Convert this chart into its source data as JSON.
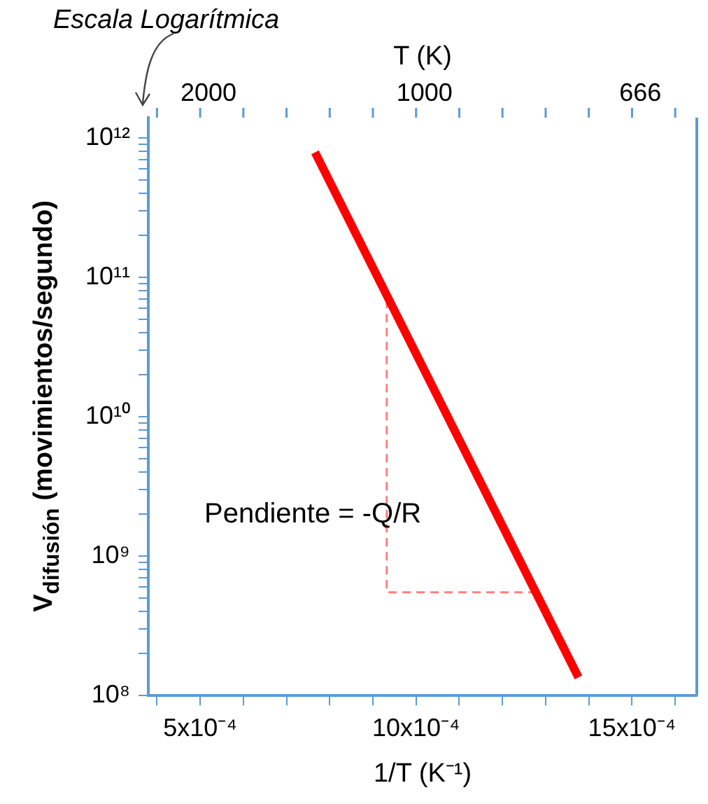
{
  "chart_data": {
    "type": "line",
    "xlabel": "1/T (K⁻¹)",
    "ylabel": "V$_{difusión}$ (movimientos/segundo)",
    "x2label": "T (K)",
    "annotations": [
      "Escala Logarítmica",
      "Pendiente = -Q/R",
      "2000",
      "1000",
      "666"
    ],
    "log": "y",
    "grid": false,
    "legend": false,
    "marker": "none",
    "xlim": [
      0.00038,
      0.00165
    ],
    "xticks": [
      {
        "value": 0.0004,
        "label": null
      },
      {
        "value": 0.0005,
        "label": "5x10⁻⁴"
      },
      {
        "value": 0.0006,
        "label": null
      },
      {
        "value": 0.0007,
        "label": null
      },
      {
        "value": 0.0008,
        "label": null
      },
      {
        "value": 0.0009,
        "label": null
      },
      {
        "value": 0.001,
        "label": "10x10⁻⁴"
      },
      {
        "value": 0.0011,
        "label": null
      },
      {
        "value": 0.0012,
        "label": null
      },
      {
        "value": 0.0013,
        "label": null
      },
      {
        "value": 0.0014,
        "label": null
      },
      {
        "value": 0.0015,
        "label": "15x10⁻⁴"
      },
      {
        "value": 0.0016,
        "label": null
      }
    ],
    "ylim": [
      100000000,
      1400000000000
    ],
    "yticks": [
      {
        "value": 100000000,
        "label": "10⁸"
      },
      {
        "value": 200000000,
        "label": null
      },
      {
        "value": 300000000,
        "label": null
      },
      {
        "value": 400000000,
        "label": null
      },
      {
        "value": 500000000,
        "label": null
      },
      {
        "value": 600000000,
        "label": null
      },
      {
        "value": 700000000,
        "label": null
      },
      {
        "value": 800000000,
        "label": null
      },
      {
        "value": 900000000,
        "label": null
      },
      {
        "value": 1000000000,
        "label": "10⁹"
      },
      {
        "value": 2000000000,
        "label": null
      },
      {
        "value": 3000000000,
        "label": null
      },
      {
        "value": 4000000000,
        "label": null
      },
      {
        "value": 5000000000,
        "label": null
      },
      {
        "value": 6000000000,
        "label": null
      },
      {
        "value": 7000000000,
        "label": null
      },
      {
        "value": 8000000000,
        "label": null
      },
      {
        "value": 9000000000,
        "label": null
      },
      {
        "value": 10000000000,
        "label": "10¹⁰"
      },
      {
        "value": 20000000000,
        "label": null
      },
      {
        "value": 30000000000,
        "label": null
      },
      {
        "value": 40000000000,
        "label": null
      },
      {
        "value": 50000000000,
        "label": null
      },
      {
        "value": 60000000000,
        "label": null
      },
      {
        "value": 70000000000,
        "label": null
      },
      {
        "value": 80000000000,
        "label": null
      },
      {
        "value": 90000000000,
        "label": null
      },
      {
        "value": 100000000000,
        "label": "10¹¹"
      },
      {
        "value": 200000000000,
        "label": null
      },
      {
        "value": 300000000000,
        "label": null
      },
      {
        "value": 400000000000,
        "label": null
      },
      {
        "value": 500000000000,
        "label": null
      },
      {
        "value": 600000000000,
        "label": null
      },
      {
        "value": 700000000000,
        "label": null
      },
      {
        "value": 800000000000,
        "label": null
      },
      {
        "value": 900000000000,
        "label": null
      },
      {
        "value": 1000000000000,
        "label": "10¹²"
      }
    ],
    "series": [
      {
        "color": "#ff0000",
        "x": [
          0.000766,
          0.001376
        ],
        "values": [
          790000000000,
          135000000
        ]
      },
      {
        "color": "#ff7f7f",
        "line_style": "dashed",
        "x": [
          0.000932,
          0.000932,
          0.001273
        ],
        "values": [
          69000000000,
          550000000,
          550000000
        ]
      }
    ]
  }
}
